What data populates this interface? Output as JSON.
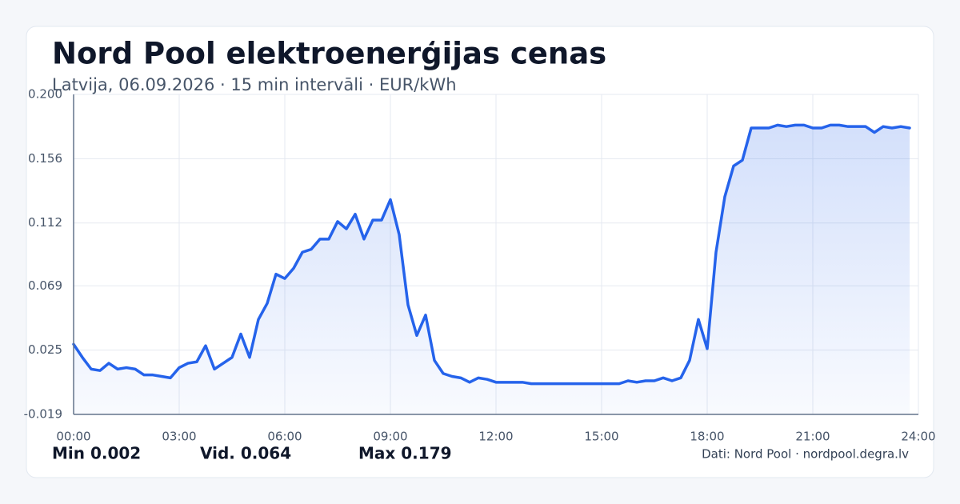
{
  "chart_data": {
    "type": "line",
    "title": "Nord Pool elektroenerģijas cenas",
    "subtitle": "Latvija, 06.09.2026 · 15 min intervāli · EUR/kWh",
    "x": [
      0,
      0.25,
      0.5,
      0.75,
      1,
      1.25,
      1.5,
      1.75,
      2,
      2.25,
      2.5,
      2.75,
      3,
      3.25,
      3.5,
      3.75,
      4,
      4.25,
      4.5,
      4.75,
      5,
      5.25,
      5.5,
      5.75,
      6,
      6.25,
      6.5,
      6.75,
      7,
      7.25,
      7.5,
      7.75,
      8,
      8.25,
      8.5,
      8.75,
      9,
      9.25,
      9.5,
      9.75,
      10,
      10.25,
      10.5,
      10.75,
      11,
      11.25,
      11.5,
      11.75,
      12,
      12.25,
      12.5,
      12.75,
      13,
      13.25,
      13.5,
      13.75,
      14,
      14.25,
      14.5,
      14.75,
      15,
      15.25,
      15.5,
      15.75,
      16,
      16.25,
      16.5,
      16.75,
      17,
      17.25,
      17.5,
      17.75,
      18,
      18.25,
      18.5,
      18.75,
      19,
      19.25,
      19.5,
      19.75,
      20,
      20.25,
      20.5,
      20.75,
      21,
      21.25,
      21.5,
      21.75,
      22,
      22.25,
      22.5,
      22.75,
      23,
      23.25,
      23.5,
      23.75
    ],
    "series": [
      {
        "name": "EUR/kWh",
        "color": "#2563eb",
        "values": [
          0.029,
          0.02,
          0.012,
          0.011,
          0.016,
          0.012,
          0.013,
          0.012,
          0.008,
          0.008,
          0.007,
          0.006,
          0.013,
          0.016,
          0.017,
          0.028,
          0.012,
          0.016,
          0.02,
          0.036,
          0.02,
          0.046,
          0.057,
          0.077,
          0.074,
          0.081,
          0.092,
          0.094,
          0.101,
          0.101,
          0.113,
          0.108,
          0.118,
          0.101,
          0.114,
          0.114,
          0.128,
          0.104,
          0.056,
          0.035,
          0.049,
          0.018,
          0.009,
          0.007,
          0.006,
          0.003,
          0.006,
          0.005,
          0.003,
          0.003,
          0.003,
          0.003,
          0.002,
          0.002,
          0.002,
          0.002,
          0.002,
          0.002,
          0.002,
          0.002,
          0.002,
          0.002,
          0.002,
          0.004,
          0.003,
          0.004,
          0.004,
          0.006,
          0.004,
          0.006,
          0.018,
          0.046,
          0.026,
          0.092,
          0.13,
          0.151,
          0.155,
          0.177,
          0.177,
          0.177,
          0.179,
          0.178,
          0.179,
          0.179,
          0.177,
          0.177,
          0.179,
          0.179,
          0.178,
          0.178,
          0.178,
          0.174,
          0.178,
          0.177,
          0.178,
          0.177
        ]
      }
    ],
    "xlim": [
      0,
      24
    ],
    "xticks": [
      {
        "value": 0,
        "label": "00:00"
      },
      {
        "value": 3,
        "label": "03:00"
      },
      {
        "value": 6,
        "label": "06:00"
      },
      {
        "value": 9,
        "label": "09:00"
      },
      {
        "value": 12,
        "label": "12:00"
      },
      {
        "value": 15,
        "label": "15:00"
      },
      {
        "value": 18,
        "label": "18:00"
      },
      {
        "value": 21,
        "label": "21:00"
      },
      {
        "value": 24,
        "label": "24:00"
      }
    ],
    "ylim": [
      -0.019,
      0.2
    ],
    "yticks": [
      -0.019,
      0.025,
      0.069,
      0.112,
      0.156,
      {
        "value": 0.2,
        "label": "0.200"
      }
    ],
    "grid": true,
    "stats": [
      "Min 0.002",
      "Vid. 0.064",
      "Max 0.179"
    ],
    "source": "Dati: Nord Pool · nordpool.degra.lv"
  }
}
